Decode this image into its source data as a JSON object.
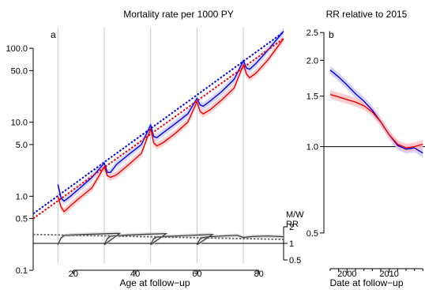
{
  "chart_data": [
    {
      "type": "line",
      "panel_letter": "a",
      "title": "Mortality rate per 1000 PY",
      "xlabel": "Age at follow−up",
      "ylabel": "",
      "xlim": [
        7,
        88
      ],
      "ylim": [
        0.1,
        190
      ],
      "y_scale": "log",
      "x_ticks": [
        20,
        40,
        60,
        80
      ],
      "x_tick_labels": [
        "20",
        "40",
        "60",
        "80"
      ],
      "y_ticks": [
        0.1,
        0.5,
        1.0,
        5.0,
        10.0,
        50.0,
        100.0
      ],
      "y_tick_labels": [
        "0.1",
        "0.5",
        "1.0",
        "5.0",
        "10.0",
        "50.0",
        "100.0"
      ],
      "cohort_entry_ages": [
        15,
        30,
        45,
        60,
        75
      ],
      "series": [
        {
          "name": "",
          "color": "#0000ee",
          "style": "solid",
          "x": [
            15,
            16,
            17,
            19,
            22,
            26,
            30,
            31,
            32,
            34,
            38,
            42,
            45,
            46,
            47,
            49,
            53,
            57,
            60,
            61,
            62,
            64,
            68,
            72,
            75,
            76,
            77,
            79,
            83,
            88
          ],
          "y": [
            1.45,
            0.95,
            0.86,
            1.0,
            1.28,
            1.8,
            2.8,
            2.1,
            2.1,
            2.7,
            3.7,
            5.0,
            9.2,
            6.4,
            6.2,
            7.2,
            9.6,
            13.0,
            21.0,
            17.2,
            16.5,
            19.0,
            26.0,
            38.0,
            68.0,
            54.0,
            52.0,
            62.0,
            95.0,
            170.0
          ]
        },
        {
          "name": "",
          "color": "#0000ee",
          "style": "dotted",
          "x": [
            7,
            88
          ],
          "y": [
            0.58,
            165
          ]
        },
        {
          "name": "",
          "color": "#ee0000",
          "style": "solid",
          "x": [
            15,
            16,
            17,
            19,
            22,
            26,
            30,
            31,
            32,
            34,
            38,
            42,
            45,
            46,
            47,
            49,
            53,
            57,
            60,
            61,
            62,
            64,
            68,
            72,
            75,
            76,
            77,
            79,
            83,
            88
          ],
          "y": [
            1.0,
            0.72,
            0.62,
            0.74,
            0.95,
            1.3,
            2.5,
            1.9,
            1.8,
            1.95,
            2.7,
            3.8,
            8.2,
            5.3,
            4.8,
            5.3,
            7.1,
            10.0,
            19.0,
            14.0,
            13.0,
            14.5,
            20.0,
            29.0,
            60.0,
            45.0,
            40.0,
            46.0,
            70.0,
            135.0
          ]
        },
        {
          "name": "",
          "color": "#ee0000",
          "style": "dotted",
          "x": [
            7,
            88
          ],
          "y": [
            0.5,
            135
          ]
        }
      ],
      "inset": {
        "label_top": "M/W",
        "label_bottom": "RR",
        "rr_ticks": [
          0.5,
          1,
          2
        ],
        "rr_tick_labels": [
          "0.5",
          "1",
          "2"
        ],
        "series": [
          {
            "name": "",
            "color": "#333333",
            "style": "solid",
            "x": [
              15,
              16,
              17,
              19,
              23,
              28,
              35,
              30,
              31,
              32,
              34,
              38,
              43,
              50,
              45,
              46,
              47,
              49,
              53,
              58,
              65,
              60,
              61,
              62,
              64,
              68,
              73,
              75,
              76,
              77,
              79,
              83,
              88
            ],
            "y": [
              0.95,
              1.25,
              1.38,
              1.42,
              1.45,
              1.48,
              1.52,
              0.95,
              1.22,
              1.35,
              1.38,
              1.42,
              1.46,
              1.5,
              0.95,
              1.22,
              1.3,
              1.33,
              1.36,
              1.4,
              1.45,
              0.95,
              1.2,
              1.28,
              1.32,
              1.36,
              1.4,
              1.28,
              1.3,
              1.32,
              1.34,
              1.36,
              1.32
            ]
          },
          {
            "name": "",
            "color": "#666666",
            "style": "dotted",
            "x": [
              7,
              88
            ],
            "y": [
              1.45,
              1.18
            ]
          }
        ]
      }
    },
    {
      "type": "line",
      "panel_letter": "b",
      "title": "RR relative to 2015",
      "xlabel": "Date at follow−up",
      "ylabel": "",
      "xlim": [
        1994.5,
        2018.5
      ],
      "ylim": [
        0.4,
        2.6
      ],
      "y_scale": "log",
      "x_ticks": [
        2000,
        2010
      ],
      "x_tick_labels": [
        "2000",
        "2010"
      ],
      "y_ticks": [
        0.5,
        1.0,
        1.5,
        2.0,
        2.5
      ],
      "y_tick_labels": [
        "0.5",
        "1.0",
        "1.5",
        "2.0",
        "2.5"
      ],
      "reference_line": 1.0,
      "series": [
        {
          "name": "",
          "color": "#0000ee",
          "x": [
            1996,
            1998,
            2000,
            2002,
            2004,
            2006,
            2008,
            2010,
            2012,
            2014,
            2015,
            2016,
            2018
          ],
          "y": [
            1.85,
            1.75,
            1.64,
            1.53,
            1.44,
            1.34,
            1.22,
            1.1,
            1.01,
            0.98,
            0.985,
            0.99,
            0.95
          ]
        },
        {
          "name": "",
          "color": "#ee0000",
          "x": [
            1996,
            1998,
            2000,
            2002,
            2004,
            2006,
            2008,
            2010,
            2012,
            2014,
            2015,
            2016,
            2018
          ],
          "y": [
            1.52,
            1.49,
            1.46,
            1.43,
            1.39,
            1.32,
            1.22,
            1.1,
            1.02,
            0.99,
            0.995,
            1.0,
            1.02
          ]
        }
      ]
    }
  ]
}
